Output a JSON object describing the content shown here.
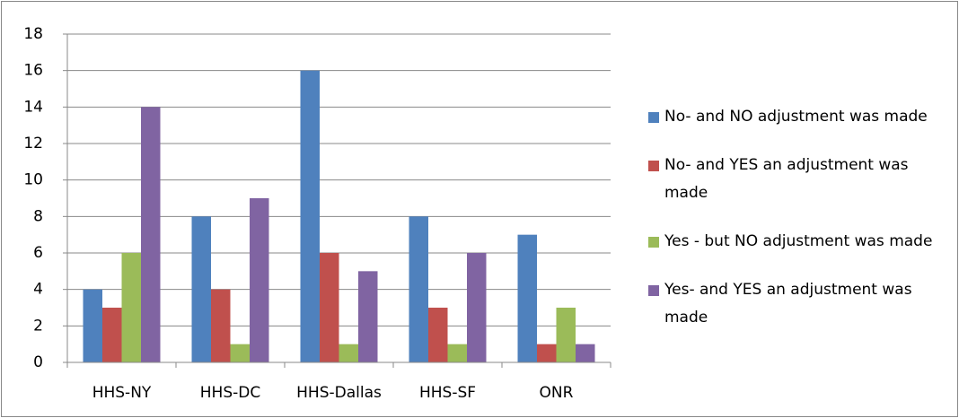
{
  "chart_data": {
    "type": "bar",
    "categories": [
      "HHS-NY",
      "HHS-DC",
      "HHS-Dallas",
      "HHS-SF",
      "ONR"
    ],
    "series": [
      {
        "name": "No- and NO adjustment was made",
        "color": "#4f81bd",
        "values": [
          4,
          8,
          16,
          8,
          7
        ]
      },
      {
        "name": "No- and YES an adjustment was made",
        "color": "#c0504d",
        "values": [
          3,
          4,
          6,
          3,
          1
        ]
      },
      {
        "name": "Yes - but NO adjustment was made",
        "color": "#9bbb59",
        "values": [
          6,
          1,
          1,
          1,
          3
        ]
      },
      {
        "name": "Yes- and YES an adjustment was made",
        "color": "#8064a2",
        "values": [
          14,
          9,
          5,
          6,
          1
        ]
      }
    ],
    "ylim": [
      0,
      18
    ],
    "yticks": [
      0,
      2,
      4,
      6,
      8,
      10,
      12,
      14,
      16,
      18
    ],
    "grid": true,
    "legend": "right"
  }
}
